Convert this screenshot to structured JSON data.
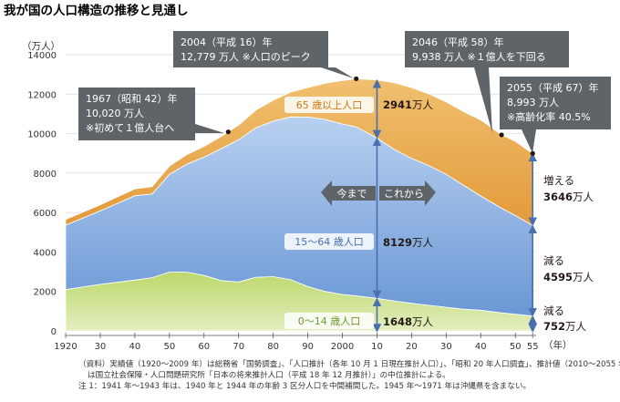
{
  "title": "我が国の人口構造の推移と見通し",
  "y_unit": "（万人）",
  "x_unit": "（年）",
  "callouts": {
    "c1967": [
      "1967（昭和 42）年",
      "10,020 万人",
      "※初めて１億人台へ"
    ],
    "c2004": [
      "2004（平成 16）年",
      "12,779 万人 ※人口のピーク"
    ],
    "c2046": [
      "2046（平成 58）年",
      "9,938 万人 ※１億人を下回る"
    ],
    "c2055": [
      "2055（平成 67）年",
      "8,993 万人",
      "※高齢化率 40.5%"
    ]
  },
  "band_labels": {
    "old": "65 歳以上人口",
    "work": "15～64 歳人口",
    "young": "0～14 歳人口"
  },
  "values_2010": {
    "old_num": "2941",
    "work_num": "8129",
    "young_num": "1648",
    "suffix": "万人"
  },
  "changes_2055": {
    "old": {
      "word": "増える",
      "num": "3646",
      "suffix": "万人"
    },
    "work": {
      "word": "減る",
      "num": "4595",
      "suffix": "万人"
    },
    "young": {
      "word": "減る",
      "num": "752",
      "suffix": "万人"
    }
  },
  "arrows": {
    "left": "今まで",
    "right": "これから"
  },
  "notes": [
    "（資料）実績値（1920～2009 年）は総務省「国勢調査」、「人口推計（各年 10 月 1 日現在推計人口）」、「昭和 20 年人口調査」、推計値（2010～2055 年）",
    "は国立社会保障・人口問題研究所「日本の将来推計人口（平成 18 年 12 月推計）」の中位推計による。",
    "注 1：1941 年～1943 年は、1940 年と 1944 年の年齢 3 区分人口を中間補間した。1945 年～1971 年は沖縄県を含まない。"
  ],
  "colors": {
    "old": "#e8a845",
    "work": "#7ea6dc",
    "young": "#aacb4f",
    "callout": "#5e6468"
  },
  "chart_data": {
    "type": "area",
    "stacked": true,
    "x_tick_labels": [
      "1920",
      "30",
      "40",
      "50",
      "60",
      "70",
      "80",
      "90",
      "2000",
      "10",
      "20",
      "30",
      "40",
      "50",
      "55"
    ],
    "x_tick_years": [
      1920,
      1930,
      1940,
      1950,
      1960,
      1970,
      1980,
      1990,
      2000,
      2010,
      2020,
      2030,
      2040,
      2050,
      2055
    ],
    "ylim": [
      0,
      14000
    ],
    "yticks": [
      0,
      2000,
      4000,
      6000,
      8000,
      10000,
      12000,
      14000
    ],
    "x": [
      1920,
      1930,
      1940,
      1945,
      1950,
      1955,
      1960,
      1965,
      1970,
      1975,
      1980,
      1985,
      1990,
      1995,
      2000,
      2004,
      2010,
      2015,
      2020,
      2025,
      2030,
      2035,
      2040,
      2046,
      2050,
      2055
    ],
    "series": [
      {
        "key": "young",
        "values": [
          2100,
          2360,
          2580,
          2700,
          2980,
          2980,
          2810,
          2550,
          2480,
          2720,
          2750,
          2600,
          2250,
          2000,
          1850,
          1780,
          1648,
          1520,
          1400,
          1300,
          1200,
          1100,
          1050,
          920,
          850,
          752
        ]
      },
      {
        "key": "work",
        "values": [
          3260,
          3720,
          4270,
          4240,
          4960,
          5470,
          6000,
          6690,
          7210,
          7580,
          7880,
          8250,
          8590,
          8720,
          8640,
          8560,
          8129,
          7680,
          7340,
          7080,
          6740,
          6290,
          5790,
          5300,
          5000,
          4595
        ]
      },
      {
        "key": "old",
        "values": [
          290,
          310,
          350,
          370,
          410,
          480,
          540,
          620,
          740,
          890,
          1060,
          1250,
          1490,
          1830,
          2200,
          2440,
          2941,
          3378,
          3590,
          3635,
          3667,
          3725,
          3853,
          3718,
          3760,
          3646
        ]
      }
    ]
  }
}
